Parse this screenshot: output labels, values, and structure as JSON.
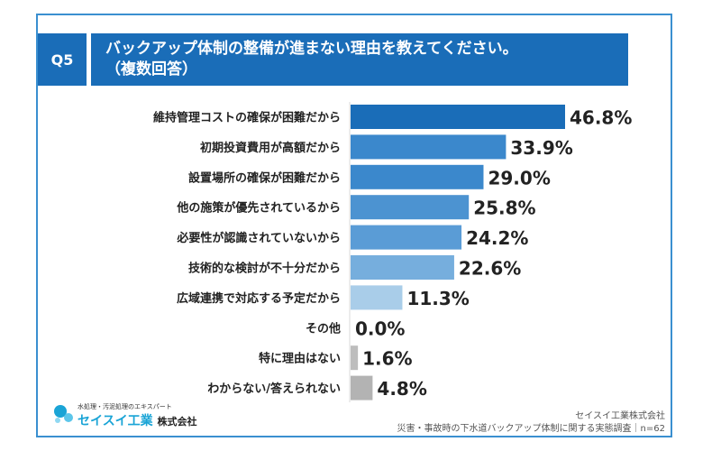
{
  "header": {
    "badge": "Q5",
    "title_line1": "バックアップ体制の整備が進まない理由を教えてください。",
    "title_line2": "（複数回答）"
  },
  "chart_data": {
    "type": "bar",
    "orientation": "horizontal",
    "unit": "%",
    "xlim": [
      0,
      55
    ],
    "categories": [
      "維持管理コストの確保が困難だから",
      "初期投資費用が高額だから",
      "設置場所の確保が困難だから",
      "他の施策が優先されているから",
      "必要性が認識されていないから",
      "技術的な検討が不十分だから",
      "広域連携で対応する予定だから",
      "その他",
      "特に理由はない",
      "わからない/答えられない"
    ],
    "values": [
      46.8,
      33.9,
      29.0,
      25.8,
      24.2,
      22.6,
      11.3,
      0.0,
      1.6,
      4.8
    ],
    "labels": [
      "46.8%",
      "33.9%",
      "29.0%",
      "25.8%",
      "24.2%",
      "22.6%",
      "11.3%",
      "0.0%",
      "1.6%",
      "4.8%"
    ],
    "colors": [
      "#1a6db8",
      "#3b88cc",
      "#3b88cc",
      "#4c93d1",
      "#5a9cd6",
      "#76aedd",
      "#a9cde9",
      "#bdbdbd",
      "#bdbdbd",
      "#b3b3b3"
    ]
  },
  "logo": {
    "tagline": "水処理・汚泥処理のエキスパート",
    "name": "セイスイ工業",
    "suffix": "株式会社"
  },
  "footer": {
    "company": "セイスイ工業株式会社",
    "survey": "災害・事故時の下水道バックアップ体制に関する実態調査｜n=62"
  }
}
